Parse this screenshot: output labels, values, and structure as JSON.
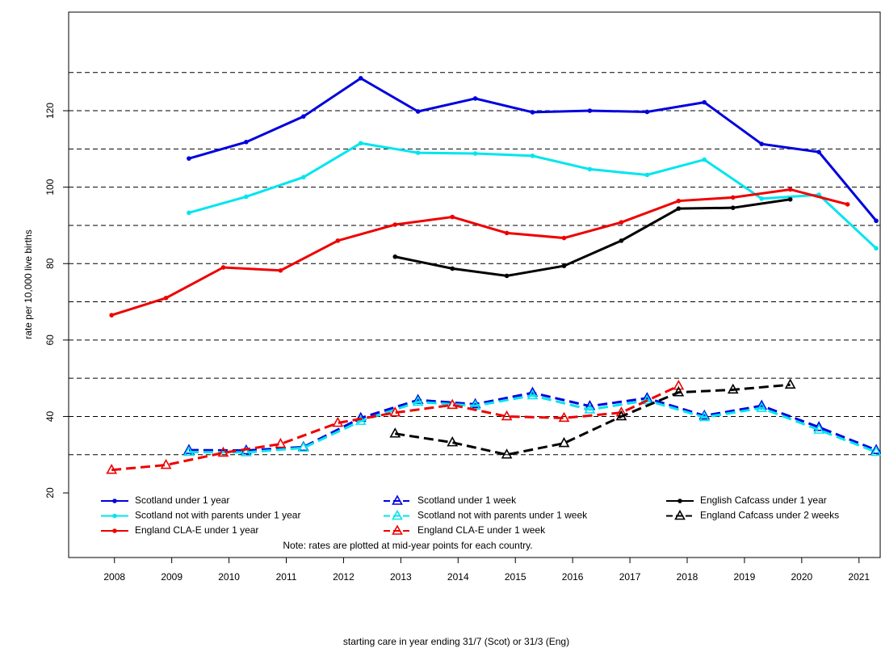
{
  "chart_data": {
    "type": "line",
    "x_label": "starting care in year ending 31/7 (Scot) or 31/3 (Eng)",
    "y_label": "rate per 10,000 live births",
    "note": "Note: rates are plotted at mid-year points for each country.",
    "xlim": [
      2007.2,
      2021.37
    ],
    "xticks": [
      2008,
      2009,
      2010,
      2011,
      2012,
      2013,
      2014,
      2015,
      2016,
      2017,
      2018,
      2019,
      2020,
      2021
    ],
    "ylim": [
      3.1,
      145.8
    ],
    "yticks": [
      20,
      40,
      60,
      80,
      100,
      120
    ],
    "grid_lines": [
      30,
      40,
      50,
      60,
      70,
      80,
      90,
      100,
      110,
      120,
      130
    ],
    "series": [
      {
        "name": "Scotland under 1 year",
        "color": "#0000dd",
        "line_style": "solid",
        "marker": "circle",
        "x": [
          2009.3,
          2010.3,
          2011.3,
          2012.3,
          2013.3,
          2014.3,
          2015.3,
          2016.3,
          2017.3,
          2018.3,
          2019.3,
          2020.3,
          2021.3
        ],
        "values": [
          107.5,
          111.8,
          118.5,
          128.5,
          119.8,
          123.2,
          119.6,
          120,
          119.7,
          122.2,
          111.3,
          109.2,
          91.2
        ]
      },
      {
        "name": "Scotland not with parents under 1 year",
        "color": "#00e5ee",
        "line_style": "solid",
        "marker": "circle",
        "x": [
          2009.3,
          2010.3,
          2011.3,
          2012.3,
          2013.3,
          2014.3,
          2015.3,
          2016.3,
          2017.3,
          2018.3,
          2019.3,
          2020.3,
          2021.3
        ],
        "values": [
          93.3,
          97.5,
          102.6,
          111.5,
          109,
          108.8,
          108.2,
          104.7,
          103.2,
          107.2,
          97,
          98,
          84
        ]
      },
      {
        "name": "England CLA-E under 1 year",
        "color": "#ee0000",
        "line_style": "solid",
        "marker": "circle",
        "x": [
          2007.95,
          2008.9,
          2009.9,
          2010.9,
          2011.9,
          2012.9,
          2013.9,
          2014.85,
          2015.85,
          2016.85,
          2017.85,
          2018.8,
          2019.8,
          2020.8
        ],
        "values": [
          66.5,
          71,
          79,
          78.2,
          86,
          90.2,
          92.2,
          88,
          86.7,
          90.8,
          96.4,
          97.3,
          99.4,
          95.5
        ]
      },
      {
        "name": "Scotland under 1 week",
        "color": "#0000dd",
        "line_style": "dashed",
        "marker": "triangle",
        "x": [
          2009.3,
          2010.3,
          2011.3,
          2012.3,
          2013.3,
          2014.3,
          2015.3,
          2016.3,
          2017.3,
          2018.3,
          2019.3,
          2020.3,
          2021.3
        ],
        "values": [
          31.2,
          31.1,
          32,
          39.6,
          44.3,
          43.2,
          46.2,
          42.7,
          44.8,
          40.2,
          42.8,
          37.2,
          31.2
        ]
      },
      {
        "name": "Scotland not with parents under 1 week",
        "color": "#00e5ee",
        "line_style": "dashed",
        "marker": "triangle",
        "x": [
          2009.3,
          2010.3,
          2011.3,
          2012.3,
          2013.3,
          2014.3,
          2015.3,
          2016.3,
          2017.3,
          2018.3,
          2019.3,
          2020.3,
          2021.3
        ],
        "values": [
          30.7,
          30.6,
          31.8,
          38.8,
          43.8,
          42.8,
          45.5,
          41.8,
          44.2,
          39.8,
          42.2,
          36.5,
          30.7
        ]
      },
      {
        "name": "England CLA-E under 1 week",
        "color": "#ee0000",
        "line_style": "dashed",
        "marker": "triangle",
        "x": [
          2007.95,
          2008.9,
          2009.9,
          2010.9,
          2011.9,
          2012.9,
          2013.9,
          2014.85,
          2015.85,
          2016.85,
          2017.85
        ],
        "values": [
          26,
          27.3,
          30.5,
          32.8,
          38.3,
          41,
          43,
          40,
          39.6,
          41,
          48
        ]
      },
      {
        "name": "English Cafcass under 1 year",
        "color": "#000000",
        "line_style": "solid",
        "marker": "circle",
        "x": [
          2012.9,
          2013.9,
          2014.85,
          2015.85,
          2016.85,
          2017.85,
          2018.8,
          2019.8
        ],
        "values": [
          81.8,
          78.7,
          76.8,
          79.4,
          86,
          94.4,
          94.6,
          96.8
        ]
      },
      {
        "name": "England Cafcass under 2 weeks",
        "color": "#000000",
        "line_style": "dashed",
        "marker": "triangle",
        "x": [
          2012.9,
          2013.9,
          2014.85,
          2015.85,
          2016.85,
          2017.85,
          2018.8,
          2019.8
        ],
        "values": [
          35.5,
          33.2,
          30,
          33,
          40,
          46.3,
          47,
          48.3
        ]
      }
    ]
  }
}
